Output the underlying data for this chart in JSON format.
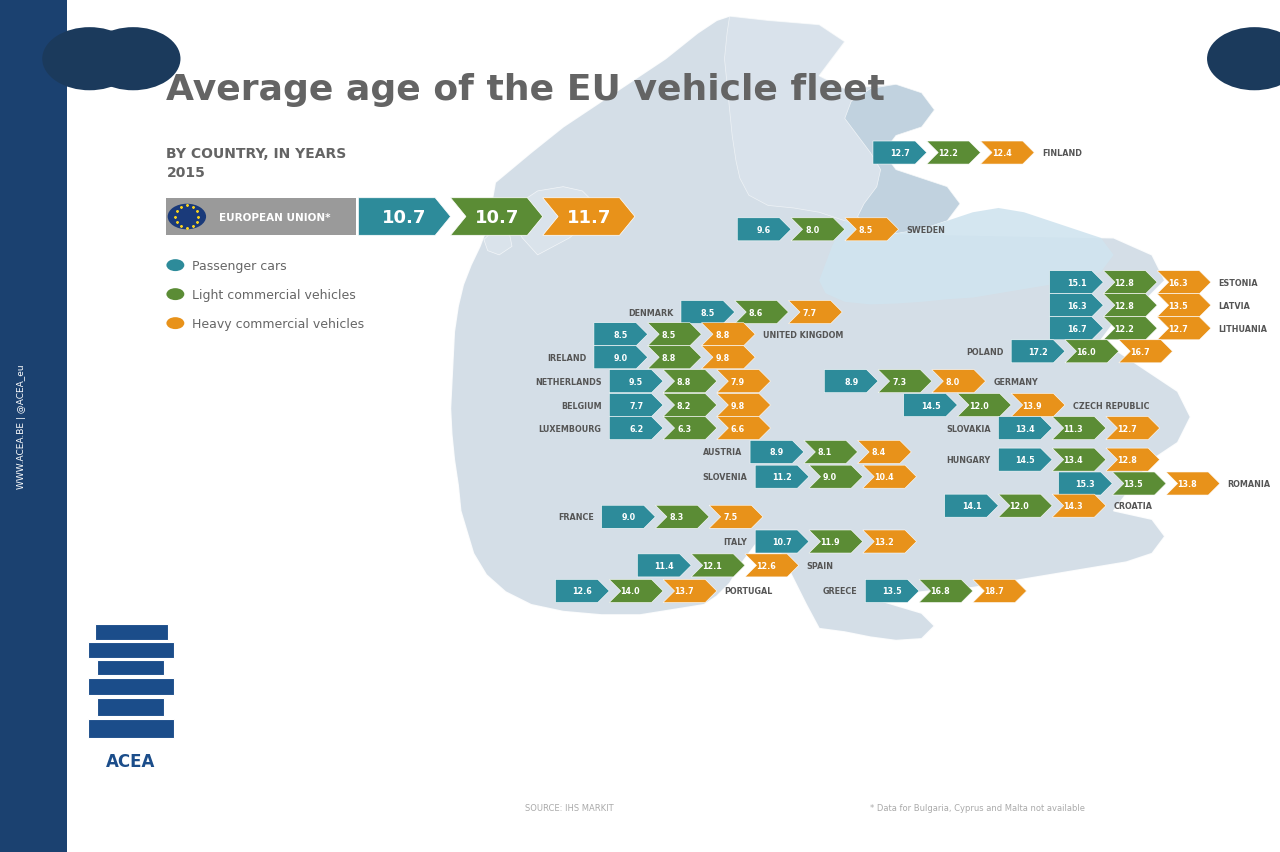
{
  "title": "Average age of the EU vehicle fleet",
  "subtitle1": "BY COUNTRY, IN YEARS",
  "subtitle2": "2015",
  "eu_values": [
    "10.7",
    "10.7",
    "11.7"
  ],
  "colors": {
    "teal": "#2d8b9a",
    "green": "#5b8c35",
    "orange": "#e8921a",
    "sidebar_blue": "#1b4170",
    "dark_blue_circle": "#1b3a5c",
    "background": "#ffffff",
    "text_gray": "#666666",
    "title_gray": "#646464",
    "eu_box_gray": "#9a9a9a",
    "map_light": "#cdd9e3",
    "map_lighter": "#dde6ee"
  },
  "legend": [
    {
      "label": "Passenger cars",
      "color": "#2d8b9a"
    },
    {
      "label": "Light commercial vehicles",
      "color": "#5b8c35"
    },
    {
      "label": "Heavy commercial vehicles",
      "color": "#e8921a"
    }
  ],
  "countries": [
    {
      "name": "FINLAND",
      "bx": 0.682,
      "by": 0.82,
      "name_right": true,
      "vals": [
        "12.7",
        "12.2",
        "12.4"
      ]
    },
    {
      "name": "SWEDEN",
      "bx": 0.576,
      "by": 0.73,
      "name_right": true,
      "vals": [
        "9.6",
        "8.0",
        "8.5"
      ]
    },
    {
      "name": "ESTONIA",
      "bx": 0.82,
      "by": 0.668,
      "name_right": true,
      "vals": [
        "15.1",
        "12.8",
        "16.3"
      ]
    },
    {
      "name": "LATVIA",
      "bx": 0.82,
      "by": 0.641,
      "name_right": true,
      "vals": [
        "16.3",
        "12.8",
        "13.5"
      ]
    },
    {
      "name": "LITHUANIA",
      "bx": 0.82,
      "by": 0.614,
      "name_right": true,
      "vals": [
        "16.7",
        "12.2",
        "12.7"
      ]
    },
    {
      "name": "DENMARK",
      "bx": 0.532,
      "by": 0.633,
      "name_right": false,
      "vals": [
        "8.5",
        "8.6",
        "7.7"
      ]
    },
    {
      "name": "UNITED KINGDOM",
      "bx": 0.464,
      "by": 0.607,
      "name_right": true,
      "vals": [
        "8.5",
        "8.5",
        "8.8"
      ]
    },
    {
      "name": "IRELAND",
      "bx": 0.464,
      "by": 0.58,
      "name_right": false,
      "vals": [
        "9.0",
        "8.8",
        "9.8"
      ]
    },
    {
      "name": "POLAND",
      "bx": 0.79,
      "by": 0.587,
      "name_right": false,
      "vals": [
        "17.2",
        "16.0",
        "16.7"
      ]
    },
    {
      "name": "NETHERLANDS",
      "bx": 0.476,
      "by": 0.552,
      "name_right": false,
      "vals": [
        "9.5",
        "8.8",
        "7.9"
      ]
    },
    {
      "name": "GERMANY",
      "bx": 0.644,
      "by": 0.552,
      "name_right": true,
      "vals": [
        "8.9",
        "7.3",
        "8.0"
      ]
    },
    {
      "name": "BELGIUM",
      "bx": 0.476,
      "by": 0.524,
      "name_right": false,
      "vals": [
        "7.7",
        "8.2",
        "9.8"
      ]
    },
    {
      "name": "CZECH REPUBLIC",
      "bx": 0.706,
      "by": 0.524,
      "name_right": true,
      "vals": [
        "14.5",
        "12.0",
        "13.9"
      ]
    },
    {
      "name": "LUXEMBOURG",
      "bx": 0.476,
      "by": 0.497,
      "name_right": false,
      "vals": [
        "6.2",
        "6.3",
        "6.6"
      ]
    },
    {
      "name": "SLOVAKIA",
      "bx": 0.78,
      "by": 0.497,
      "name_right": false,
      "vals": [
        "13.4",
        "11.3",
        "12.7"
      ]
    },
    {
      "name": "AUSTRIA",
      "bx": 0.586,
      "by": 0.469,
      "name_right": false,
      "vals": [
        "8.9",
        "8.1",
        "8.4"
      ]
    },
    {
      "name": "HUNGARY",
      "bx": 0.78,
      "by": 0.46,
      "name_right": false,
      "vals": [
        "14.5",
        "13.4",
        "12.8"
      ]
    },
    {
      "name": "SLOVENIA",
      "bx": 0.59,
      "by": 0.44,
      "name_right": false,
      "vals": [
        "11.2",
        "9.0",
        "10.4"
      ]
    },
    {
      "name": "ROMANIA",
      "bx": 0.827,
      "by": 0.432,
      "name_right": true,
      "vals": [
        "15.3",
        "13.5",
        "13.8"
      ]
    },
    {
      "name": "CROATIA",
      "bx": 0.738,
      "by": 0.406,
      "name_right": true,
      "vals": [
        "14.1",
        "12.0",
        "14.3"
      ]
    },
    {
      "name": "FRANCE",
      "bx": 0.47,
      "by": 0.393,
      "name_right": false,
      "vals": [
        "9.0",
        "8.3",
        "7.5"
      ]
    },
    {
      "name": "ITALY",
      "bx": 0.59,
      "by": 0.364,
      "name_right": false,
      "vals": [
        "10.7",
        "11.9",
        "13.2"
      ]
    },
    {
      "name": "SPAIN",
      "bx": 0.498,
      "by": 0.336,
      "name_right": true,
      "vals": [
        "11.4",
        "12.1",
        "12.6"
      ]
    },
    {
      "name": "GREECE",
      "bx": 0.676,
      "by": 0.306,
      "name_right": false,
      "vals": [
        "13.5",
        "16.8",
        "18.7"
      ]
    },
    {
      "name": "PORTUGAL",
      "bx": 0.434,
      "by": 0.306,
      "name_right": true,
      "vals": [
        "12.6",
        "14.0",
        "13.7"
      ]
    }
  ],
  "source_text": "SOURCE: IHS MARKIT",
  "footnote": "* Data for Bulgaria, Cyprus and Malta not available",
  "map_polygons": [
    [
      [
        0.38,
        0.88
      ],
      [
        0.46,
        0.92
      ],
      [
        0.52,
        0.94
      ],
      [
        0.58,
        0.96
      ],
      [
        0.64,
        0.97
      ],
      [
        0.7,
        0.96
      ],
      [
        0.76,
        0.94
      ],
      [
        0.82,
        0.91
      ],
      [
        0.87,
        0.88
      ],
      [
        0.92,
        0.84
      ],
      [
        0.96,
        0.8
      ],
      [
        0.98,
        0.75
      ],
      [
        0.98,
        0.7
      ],
      [
        0.96,
        0.65
      ],
      [
        0.94,
        0.6
      ],
      [
        0.96,
        0.56
      ],
      [
        0.98,
        0.52
      ],
      [
        0.97,
        0.48
      ],
      [
        0.95,
        0.44
      ],
      [
        0.93,
        0.41
      ],
      [
        0.9,
        0.38
      ],
      [
        0.87,
        0.36
      ],
      [
        0.84,
        0.34
      ],
      [
        0.81,
        0.32
      ],
      [
        0.78,
        0.31
      ],
      [
        0.75,
        0.305
      ],
      [
        0.72,
        0.3
      ],
      [
        0.69,
        0.295
      ],
      [
        0.66,
        0.29
      ],
      [
        0.63,
        0.285
      ],
      [
        0.6,
        0.275
      ],
      [
        0.57,
        0.27
      ],
      [
        0.54,
        0.265
      ],
      [
        0.51,
        0.268
      ],
      [
        0.48,
        0.275
      ],
      [
        0.45,
        0.285
      ],
      [
        0.42,
        0.295
      ],
      [
        0.395,
        0.31
      ],
      [
        0.375,
        0.33
      ],
      [
        0.36,
        0.355
      ],
      [
        0.35,
        0.385
      ],
      [
        0.348,
        0.415
      ],
      [
        0.35,
        0.445
      ],
      [
        0.355,
        0.475
      ],
      [
        0.36,
        0.51
      ],
      [
        0.358,
        0.545
      ],
      [
        0.355,
        0.58
      ],
      [
        0.355,
        0.615
      ],
      [
        0.36,
        0.65
      ],
      [
        0.365,
        0.68
      ],
      [
        0.37,
        0.71
      ],
      [
        0.372,
        0.74
      ],
      [
        0.374,
        0.765
      ],
      [
        0.376,
        0.79
      ],
      [
        0.378,
        0.815
      ],
      [
        0.38,
        0.84
      ],
      [
        0.38,
        0.88
      ]
    ]
  ]
}
